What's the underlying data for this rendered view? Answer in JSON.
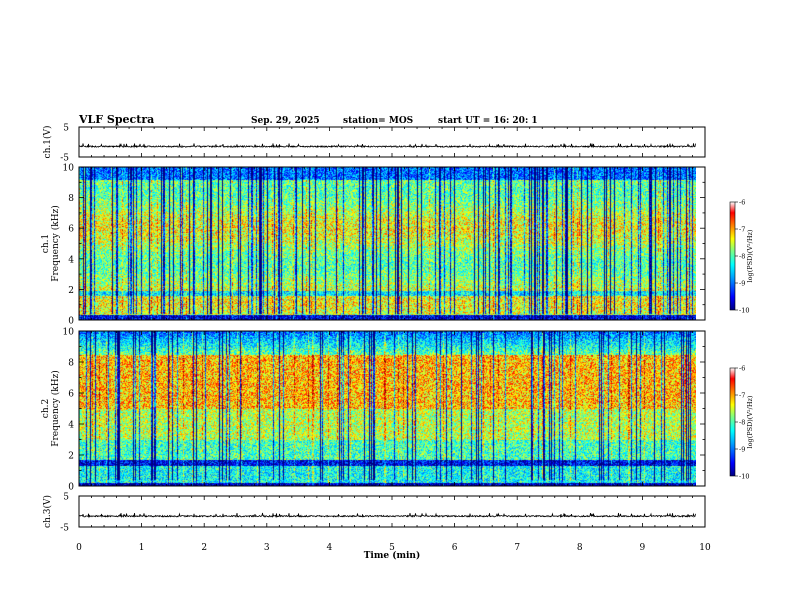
{
  "header": {
    "title": "VLF Spectra",
    "date": "Sep. 29, 2025",
    "station": "station= MOS",
    "start": "start  UT =   16: 20: 1"
  },
  "colors": {
    "colormap": [
      "#000080",
      "#0000ff",
      "#0080ff",
      "#00ffff",
      "#80ff80",
      "#ffff00",
      "#ff8000",
      "#ff0000",
      "#800000",
      "#ffffff"
    ],
    "background": "#ffffff",
    "axis": "#000000"
  },
  "chart_data": [
    {
      "type": "line",
      "name": "ch1-waveform",
      "ylabel": "ch.1(V)",
      "ylim": [
        -5,
        5
      ],
      "yticks": [
        "5",
        "-5"
      ],
      "xlim": [
        0,
        10
      ],
      "level": -1.5
    },
    {
      "type": "heatmap",
      "name": "ch1-spectrogram",
      "ylabel": "ch.1\nFrequency (kHz)",
      "ylabel_lines": [
        "ch.1",
        "Frequency (kHz)"
      ],
      "ylim": [
        0,
        10
      ],
      "yticks": [
        0,
        2,
        4,
        6,
        8,
        10
      ],
      "xlim": [
        0,
        10
      ],
      "data_end_min": 9.85,
      "colorbar": {
        "label": "log(PSD)(V²/Hz)",
        "ticks": [
          -6,
          -7,
          -8,
          -9,
          -10
        ],
        "range": [
          -10,
          -6
        ]
      }
    },
    {
      "type": "heatmap",
      "name": "ch2-spectrogram",
      "ylabel": "ch.2\nFrequency (kHz)",
      "ylabel_lines": [
        "ch.2",
        "Frequency (kHz)"
      ],
      "ylim": [
        0,
        10
      ],
      "yticks": [
        0,
        2,
        4,
        6,
        8,
        10
      ],
      "xlim": [
        0,
        10
      ],
      "data_end_min": 9.85,
      "colorbar": {
        "label": "log(PSD)(V²/Hz)",
        "ticks": [
          -6,
          -7,
          -8,
          -9,
          -10
        ],
        "range": [
          -10,
          -6
        ]
      }
    },
    {
      "type": "line",
      "name": "ch3-waveform",
      "ylabel": "ch.3(V)",
      "ylim": [
        -5,
        5
      ],
      "yticks": [
        "5",
        "-5"
      ],
      "xlim": [
        0,
        10
      ],
      "level": -1.5
    }
  ],
  "xaxis": {
    "label": "Time  (min)",
    "ticks": [
      "0",
      "1",
      "2",
      "3",
      "4",
      "5",
      "6",
      "7",
      "8",
      "9",
      "10"
    ]
  }
}
